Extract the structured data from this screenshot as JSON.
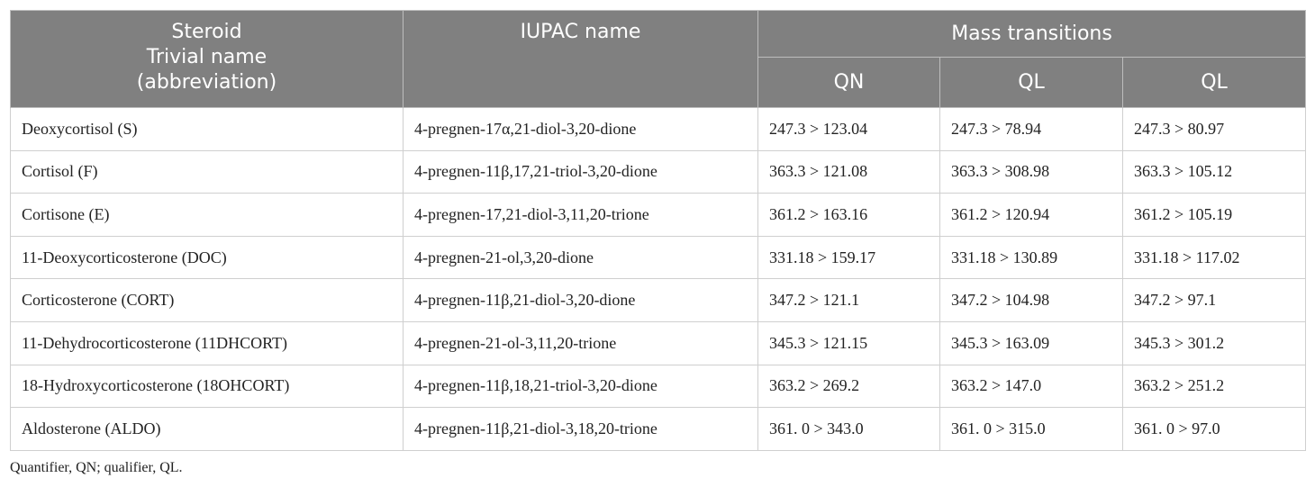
{
  "table": {
    "header": {
      "steroid": [
        "Steroid",
        "Trivial name",
        "(abbreviation)"
      ],
      "iupac": "IUPAC name",
      "mass": "Mass transitions",
      "sub": [
        "QN",
        "QL",
        "QL"
      ]
    },
    "rows": [
      [
        "Deoxycortisol (S)",
        "4-pregnen-17α,21-diol-3,20-dione",
        "247.3 > 123.04",
        "247.3 > 78.94",
        "247.3 > 80.97"
      ],
      [
        "Cortisol (F)",
        "4-pregnen-11β,17,21-triol-3,20-dione",
        "363.3 > 121.08",
        "363.3 > 308.98",
        "363.3 > 105.12"
      ],
      [
        "Cortisone (E)",
        "4-pregnen-17,21-diol-3,11,20-trione",
        "361.2 > 163.16",
        "361.2 > 120.94",
        "361.2 > 105.19"
      ],
      [
        "11-Deoxycorticosterone (DOC)",
        "4-pregnen-21-ol,3,20-dione",
        "331.18 > 159.17",
        "331.18 > 130.89",
        "331.18 > 117.02"
      ],
      [
        "Corticosterone (CORT)",
        "4-pregnen-11β,21-diol-3,20-dione",
        "347.2 > 121.1",
        "347.2 > 104.98",
        "347.2 > 97.1"
      ],
      [
        "11-Dehydrocorticosterone (11DHCORT)",
        "4-pregnen-21-ol-3,11,20-trione",
        "345.3 > 121.15",
        "345.3 > 163.09",
        "345.3 > 301.2"
      ],
      [
        "18-Hydroxycorticosterone (18OHCORT)",
        "4-pregnen-11β,18,21-triol-3,20-dione",
        "363.2 > 269.2",
        "363.2 > 147.0",
        "363.2 > 251.2"
      ],
      [
        "Aldosterone (ALDO)",
        "4-pregnen-11β,21-diol-3,18,20-trione",
        "361. 0 > 343.0",
        "361. 0 > 315.0",
        "361. 0 > 97.0"
      ]
    ]
  },
  "footnote": "Quantifier, QN; qualifier, QL."
}
